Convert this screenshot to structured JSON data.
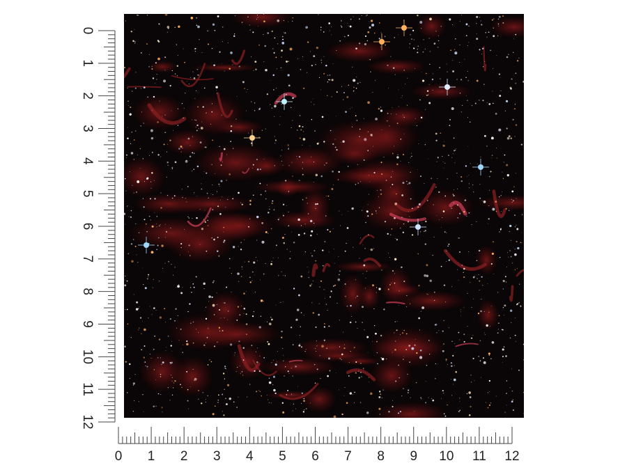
{
  "vertical_ruler": {
    "labels": [
      0,
      1,
      2,
      3,
      4,
      5,
      6,
      7,
      8,
      9,
      10,
      11,
      12
    ]
  },
  "horizontal_ruler": {
    "labels": [
      0,
      1,
      2,
      3,
      4,
      5,
      6,
      7,
      8,
      9,
      10,
      11,
      12
    ]
  }
}
